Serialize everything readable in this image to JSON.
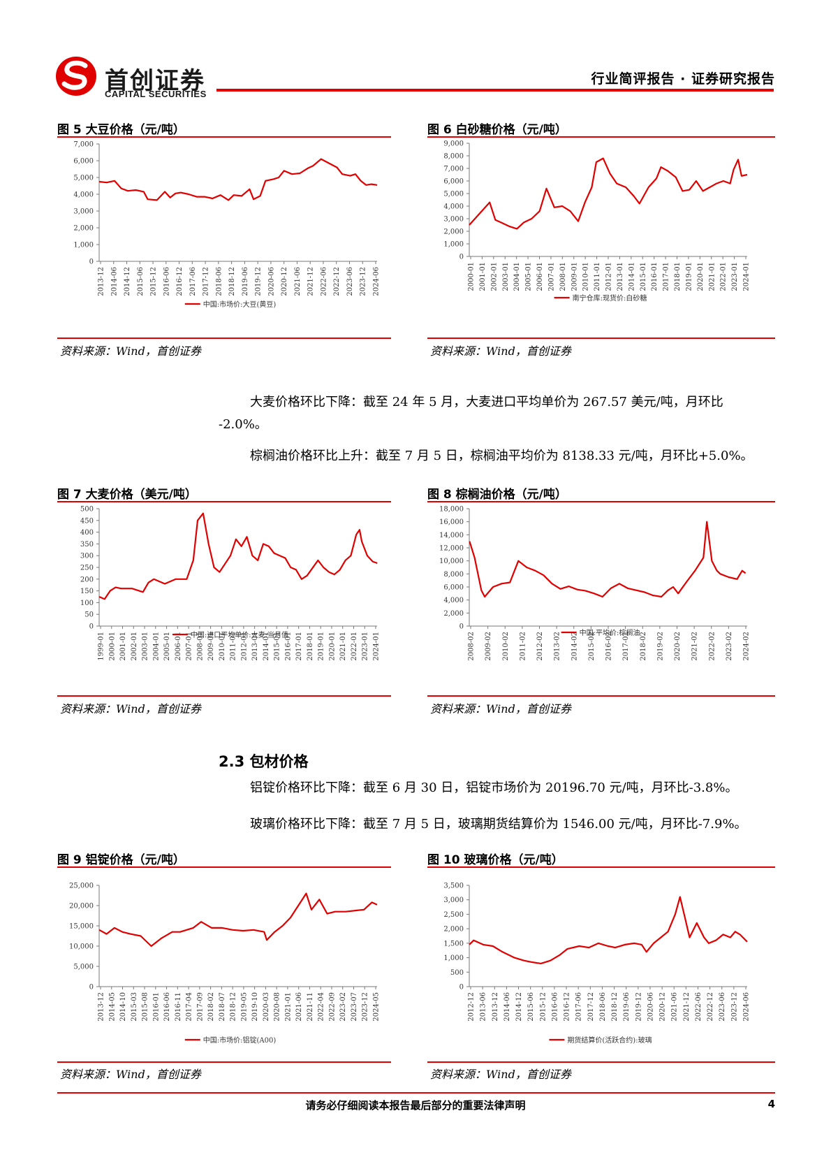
{
  "header": {
    "brand_cn": "首创证券",
    "brand_en": "CAPITAL SECURITIES",
    "report_type": "行业简评报告 · 证券研究报告",
    "brand_color": "#e00000"
  },
  "figures": [
    {
      "title": "图 5  大豆价格（元/吨）",
      "source": "资料来源：Wind，首创证券"
    },
    {
      "title": "图 6  白砂糖价格（元/吨）",
      "source": "资料来源：Wind，首创证券"
    },
    {
      "title": "图 7  大麦价格（美元/吨）",
      "source": "资料来源：Wind，首创证券"
    },
    {
      "title": "图 8  棕榈油价格（元/吨）",
      "source": "资料来源：Wind，首创证券"
    },
    {
      "title": "图 9  铝锭价格（元/吨）",
      "source": "资料来源：Wind，首创证券"
    },
    {
      "title": "图 10  玻璃价格（元/吨）",
      "source": "资料来源：Wind，首创证券"
    }
  ],
  "paragraphs": {
    "barley_line1": "大麦价格环比下降：截至 24 年 5 月，大麦进口平均单价为 267.57 美元/吨，月环比",
    "barley_line2": "-2.0%。",
    "palm": "棕榈油价格环比上升：截至 7 月 5 日，棕榈油平均价为 8138.33 元/吨，月环比+5.0%。",
    "section_title": "2.3 包材价格",
    "aluminum": "铝锭价格环比下降：截至 6 月 30 日，铝锭市场价为 20196.70 元/吨，月环比-3.8%。",
    "glass": "玻璃价格环比下降：截至 7 月 5 日，玻璃期货结算价为 1546.00 元/吨，月环比-7.9%。"
  },
  "footer": {
    "disclaimer": "请务必仔细阅读本报告最后部分的重要法律声明",
    "page": "4"
  },
  "chart_data": [
    {
      "type": "line",
      "title": "图 5  大豆价格（元/吨）",
      "color": "#e00000",
      "ylim": [
        0,
        7000
      ],
      "yticks": [
        0,
        1000,
        2000,
        3000,
        4000,
        5000,
        6000,
        7000
      ],
      "ytick_labels": [
        "0",
        "1,000",
        "2,000",
        "3,000",
        "4,000",
        "5,000",
        "6,000",
        "7,000"
      ],
      "xlim": [
        2013.917,
        2024.417
      ],
      "xtick_labels": [
        "2013-12",
        "2014-06",
        "2014-12",
        "2015-06",
        "2015-12",
        "2016-06",
        "2016-12",
        "2017-06",
        "2017-12",
        "2018-06",
        "2018-12",
        "2019-06",
        "2019-12",
        "2020-06",
        "2020-12",
        "2021-06",
        "2021-12",
        "2022-06",
        "2022-12",
        "2023-06",
        "2023-12",
        "2024-06"
      ],
      "series": [
        {
          "name": "中国:市场价:大豆(黄豆)",
          "x": [
            2013.92,
            2014.2,
            2014.5,
            2014.75,
            2015.0,
            2015.3,
            2015.6,
            2015.75,
            2016.1,
            2016.4,
            2016.6,
            2016.8,
            2017.0,
            2017.3,
            2017.6,
            2017.9,
            2018.2,
            2018.5,
            2018.8,
            2019.0,
            2019.3,
            2019.6,
            2019.75,
            2020.0,
            2020.2,
            2020.5,
            2020.7,
            2020.9,
            2021.2,
            2021.5,
            2021.8,
            2022.0,
            2022.3,
            2022.6,
            2022.9,
            2023.1,
            2023.4,
            2023.6,
            2023.8,
            2024.0,
            2024.2,
            2024.42
          ],
          "values": [
            4750,
            4700,
            4800,
            4350,
            4200,
            4250,
            4150,
            3700,
            3650,
            4150,
            3800,
            4050,
            4100,
            4000,
            3850,
            3850,
            3750,
            3950,
            3650,
            3950,
            3900,
            4300,
            3700,
            3900,
            4800,
            4900,
            5000,
            5400,
            5200,
            5250,
            5550,
            5700,
            6100,
            5850,
            5600,
            5200,
            5100,
            5200,
            4800,
            4550,
            4600,
            4550
          ]
        }
      ]
    },
    {
      "type": "line",
      "title": "图 6  白砂糖价格（元/吨）",
      "color": "#e00000",
      "ylim": [
        0,
        9000
      ],
      "yticks": [
        0,
        1000,
        2000,
        3000,
        4000,
        5000,
        6000,
        7000,
        8000,
        9000
      ],
      "ytick_labels": [
        "0",
        "1,000",
        "2,000",
        "3,000",
        "4,000",
        "5,000",
        "6,000",
        "7,000",
        "8,000",
        "9,000"
      ],
      "xlim": [
        2000.0,
        2024.5
      ],
      "xtick_labels": [
        "2000-01",
        "2001-01",
        "2002-01",
        "2003-01",
        "2004-01",
        "2005-01",
        "2006-01",
        "2007-01",
        "2008-01",
        "2009-01",
        "2010-01",
        "2011-01",
        "2012-01",
        "2013-01",
        "2014-01",
        "2015-01",
        "2016-01",
        "2017-01",
        "2018-01",
        "2019-01",
        "2020-01",
        "2021-01",
        "2022-01",
        "2023-01",
        "2024-01"
      ],
      "series": [
        {
          "name": "南宁仓库:现货价:白砂糖",
          "x": [
            2000.0,
            2001.0,
            2001.8,
            2002.3,
            2002.8,
            2003.5,
            2004.2,
            2004.8,
            2005.5,
            2006.2,
            2006.8,
            2007.5,
            2008.2,
            2008.9,
            2009.6,
            2010.2,
            2010.8,
            2011.2,
            2011.8,
            2012.4,
            2013.0,
            2013.8,
            2014.5,
            2015.0,
            2015.8,
            2016.5,
            2016.9,
            2017.5,
            2018.2,
            2018.8,
            2019.4,
            2020.0,
            2020.6,
            2021.2,
            2021.8,
            2022.4,
            2023.0,
            2023.3,
            2023.7,
            2024.0,
            2024.5
          ],
          "values": [
            2500,
            3500,
            4300,
            2900,
            2700,
            2400,
            2200,
            2700,
            3000,
            3600,
            5400,
            3900,
            4000,
            3600,
            2800,
            4300,
            5500,
            7500,
            7800,
            6600,
            5800,
            5500,
            4800,
            4200,
            5500,
            6200,
            7100,
            6800,
            6300,
            5200,
            5300,
            6000,
            5200,
            5500,
            5800,
            6000,
            5800,
            6900,
            7700,
            6400,
            6500
          ]
        }
      ]
    },
    {
      "type": "line",
      "title": "图 7  大麦价格（美元/吨）",
      "color": "#e00000",
      "ylim": [
        0,
        500
      ],
      "yticks": [
        0,
        50,
        100,
        150,
        200,
        250,
        300,
        350,
        400,
        450,
        500
      ],
      "ytick_labels": [
        "0",
        "50",
        "100",
        "150",
        "200",
        "250",
        "300",
        "350",
        "400",
        "450",
        "500"
      ],
      "xlim": [
        1999.0,
        2024.4
      ],
      "xtick_labels": [
        "1999-01",
        "2000-01",
        "2001-01",
        "2002-01",
        "2003-01",
        "2004-01",
        "2005-01",
        "2006-01",
        "2007-01",
        "2008-01",
        "2009-01",
        "2010-01",
        "2011-01",
        "2012-01",
        "2013-01",
        "2014-01",
        "2015-01",
        "2016-01",
        "2017-01",
        "2018-01",
        "2019-01",
        "2020-01",
        "2021-01",
        "2022-01",
        "2023-01",
        "2024-01"
      ],
      "series": [
        {
          "name": "中国:进口平均单价:大麦:当月值",
          "x": [
            1999.0,
            1999.5,
            2000.0,
            2000.5,
            2001.0,
            2002.0,
            2003.0,
            2003.5,
            2004.0,
            2005.0,
            2006.0,
            2007.0,
            2007.6,
            2008.0,
            2008.5,
            2009.0,
            2009.5,
            2010.0,
            2011.0,
            2011.5,
            2012.0,
            2012.5,
            2013.0,
            2013.5,
            2014.0,
            2014.5,
            2015.0,
            2016.0,
            2016.5,
            2017.0,
            2017.5,
            2018.0,
            2019.0,
            2019.5,
            2020.0,
            2020.5,
            2021.0,
            2021.5,
            2022.0,
            2022.5,
            2022.8,
            2023.0,
            2023.5,
            2024.0,
            2024.42
          ],
          "values": [
            125,
            115,
            150,
            165,
            160,
            160,
            145,
            185,
            200,
            180,
            200,
            200,
            280,
            450,
            480,
            350,
            250,
            230,
            300,
            370,
            340,
            380,
            300,
            280,
            350,
            340,
            310,
            290,
            250,
            240,
            200,
            215,
            280,
            250,
            230,
            220,
            240,
            280,
            300,
            390,
            410,
            360,
            300,
            275,
            268
          ]
        }
      ]
    },
    {
      "type": "line",
      "title": "图 8  棕榈油价格（元/吨）",
      "color": "#e00000",
      "ylim": [
        0,
        18000
      ],
      "yticks": [
        0,
        2000,
        4000,
        6000,
        8000,
        10000,
        12000,
        14000,
        16000,
        18000
      ],
      "ytick_labels": [
        "0",
        "2,000",
        "4,000",
        "6,000",
        "8,000",
        "10,000",
        "12,000",
        "14,000",
        "16,000",
        "18,000"
      ],
      "xlim": [
        2008.083,
        2024.6
      ],
      "xtick_labels": [
        "2008-02",
        "2009-02",
        "2010-02",
        "2011-02",
        "2012-02",
        "2013-02",
        "2014-02",
        "2015-02",
        "2016-02",
        "2017-02",
        "2018-02",
        "2019-02",
        "2020-02",
        "2021-02",
        "2022-02",
        "2023-02",
        "2024-02"
      ],
      "series": [
        {
          "name": "中国:平均价:棕榈油",
          "x": [
            2008.1,
            2008.4,
            2008.8,
            2009.0,
            2009.5,
            2010.0,
            2010.5,
            2011.0,
            2011.5,
            2012.0,
            2012.5,
            2013.0,
            2013.5,
            2014.0,
            2014.5,
            2015.0,
            2015.5,
            2016.0,
            2016.5,
            2017.0,
            2017.5,
            2018.0,
            2018.5,
            2019.0,
            2019.5,
            2019.9,
            2020.2,
            2020.5,
            2021.0,
            2021.5,
            2022.0,
            2022.2,
            2022.5,
            2022.8,
            2023.0,
            2023.5,
            2024.0,
            2024.3,
            2024.5
          ],
          "values": [
            13000,
            10500,
            5500,
            4500,
            6000,
            6500,
            6700,
            10000,
            9000,
            8500,
            7800,
            6500,
            5700,
            6100,
            5600,
            5400,
            5000,
            4500,
            5800,
            6500,
            5800,
            5500,
            5200,
            4700,
            4500,
            5500,
            6000,
            5000,
            6800,
            8500,
            10500,
            16000,
            10000,
            8500,
            8000,
            7500,
            7200,
            8500,
            8100
          ]
        }
      ]
    },
    {
      "type": "line",
      "title": "图 9  铝锭价格（元/吨）",
      "color": "#e00000",
      "ylim": [
        0,
        25000
      ],
      "yticks": [
        0,
        5000,
        10000,
        15000,
        20000,
        25000
      ],
      "ytick_labels": [
        "0",
        "5,000",
        "10,000",
        "15,000",
        "20,000",
        "25,000"
      ],
      "xlim": [
        2013.917,
        2024.5
      ],
      "xtick_labels": [
        "2013-12",
        "2014-05",
        "2014-10",
        "2015-03",
        "2015-08",
        "2016-01",
        "2016-06",
        "2016-11",
        "2017-04",
        "2017-09",
        "2018-02",
        "2018-07",
        "2018-12",
        "2019-05",
        "2019-10",
        "2020-03",
        "2020-08",
        "2021-01",
        "2021-06",
        "2021-11",
        "2022-04",
        "2022-09",
        "2023-02",
        "2023-07",
        "2023-12",
        "2024-05"
      ],
      "series": [
        {
          "name": "中国:市场价:铝锭(A00)",
          "x": [
            2013.92,
            2014.2,
            2014.5,
            2014.8,
            2015.1,
            2015.5,
            2015.9,
            2016.3,
            2016.7,
            2017.0,
            2017.5,
            2017.8,
            2018.2,
            2018.6,
            2019.0,
            2019.4,
            2019.8,
            2020.2,
            2020.3,
            2020.6,
            2020.9,
            2021.2,
            2021.5,
            2021.8,
            2022.0,
            2022.3,
            2022.6,
            2022.9,
            2023.3,
            2023.7,
            2024.0,
            2024.3,
            2024.5
          ],
          "values": [
            14000,
            13000,
            14500,
            13500,
            13000,
            12500,
            10000,
            12000,
            13500,
            13500,
            14500,
            16000,
            14500,
            14500,
            14000,
            13800,
            14000,
            13500,
            11500,
            13500,
            15000,
            17000,
            20000,
            23000,
            19000,
            21500,
            18000,
            18500,
            18500,
            18800,
            19000,
            20800,
            20200
          ]
        }
      ]
    },
    {
      "type": "line",
      "title": "图 10  玻璃价格（元/吨）",
      "color": "#e00000",
      "ylim": [
        0,
        3500
      ],
      "yticks": [
        0,
        500,
        1000,
        1500,
        2000,
        2500,
        3000,
        3500
      ],
      "ytick_labels": [
        "0",
        "500",
        "1,000",
        "1,500",
        "2,000",
        "2,500",
        "3,000",
        "3,500"
      ],
      "xlim": [
        2012.917,
        2024.5
      ],
      "xtick_labels": [
        "2012-12",
        "2013-06",
        "2013-12",
        "2014-06",
        "2014-12",
        "2015-06",
        "2015-12",
        "2016-06",
        "2016-12",
        "2017-06",
        "2017-12",
        "2018-06",
        "2018-12",
        "2019-06",
        "2019-12",
        "2020-06",
        "2020-12",
        "2021-06",
        "2021-12",
        "2022-06",
        "2022-12",
        "2023-06",
        "2023-12",
        "2024-06"
      ],
      "series": [
        {
          "name": "期货结算价(活跃合约):玻璃",
          "x": [
            2012.92,
            2013.1,
            2013.5,
            2013.9,
            2014.3,
            2014.8,
            2015.2,
            2015.5,
            2015.9,
            2016.3,
            2016.7,
            2017.0,
            2017.5,
            2017.9,
            2018.3,
            2018.7,
            2019.0,
            2019.4,
            2019.8,
            2020.1,
            2020.3,
            2020.6,
            2020.9,
            2021.2,
            2021.5,
            2021.7,
            2021.9,
            2022.1,
            2022.4,
            2022.7,
            2022.9,
            2023.2,
            2023.5,
            2023.8,
            2024.0,
            2024.2,
            2024.5
          ],
          "values": [
            1450,
            1600,
            1450,
            1400,
            1200,
            1000,
            900,
            850,
            800,
            900,
            1100,
            1300,
            1400,
            1350,
            1500,
            1400,
            1350,
            1450,
            1500,
            1450,
            1200,
            1500,
            1700,
            1900,
            2500,
            3100,
            2400,
            1700,
            2200,
            1700,
            1500,
            1600,
            1800,
            1700,
            1900,
            1800,
            1550
          ]
        }
      ]
    }
  ]
}
